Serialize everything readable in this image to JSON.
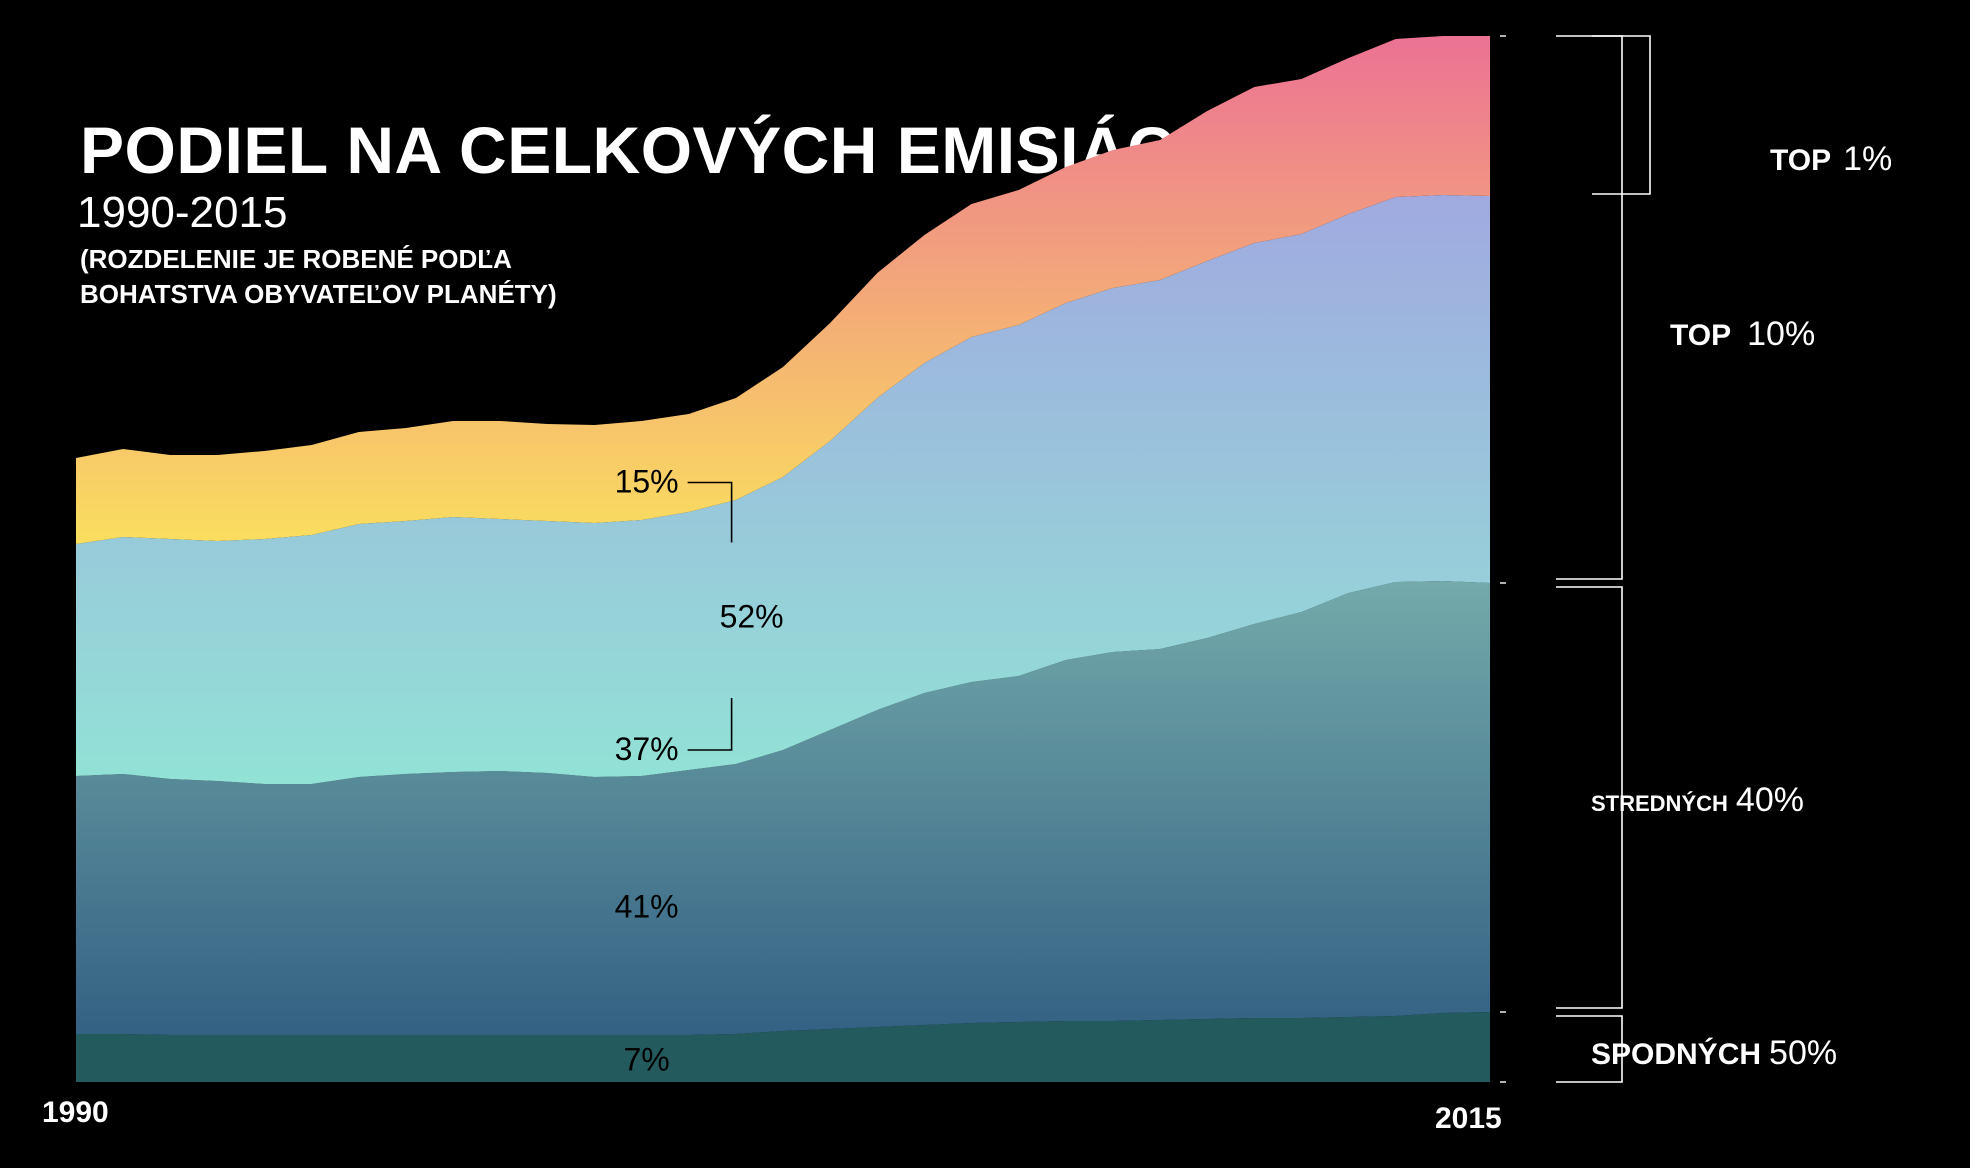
{
  "title": "PODIEL NA CELKOVÝCH EMISIÁCH",
  "subtitle": "1990-2015",
  "note_lines": [
    "(ROZDELENIE JE ROBENÉ PODĽA",
    "BOHATSTVA OBYVATEĽOV PLANÉTY)"
  ],
  "chart_data": {
    "type": "area",
    "stacked": true,
    "x_start_label": "1990",
    "x_end_label": "2015",
    "series": [
      {
        "name": "SPODNÝCH 50%",
        "group_label": "SPODNÝCH",
        "group_pct": "50%",
        "share_label": "7%",
        "colors": [
          "#235a5e",
          "#235a5e"
        ],
        "values": [
          48,
          48,
          47,
          47,
          47,
          47,
          47,
          47,
          47,
          47,
          47,
          47,
          47,
          47,
          48,
          51,
          53,
          55,
          57,
          59,
          60,
          61,
          61,
          62,
          63,
          64,
          64,
          65,
          66,
          69,
          70
        ]
      },
      {
        "name": "STREDNÝCH 40%",
        "group_label": "STREDNÝCH",
        "group_pct": "40%",
        "share_label": "41%",
        "colors": [
          "#336183",
          "#74aaaa"
        ],
        "values": [
          258,
          260,
          256,
          254,
          251,
          251,
          258,
          261,
          263,
          264,
          262,
          258,
          259,
          265,
          270,
          281,
          299,
          317,
          332,
          341,
          346,
          361,
          369,
          371,
          381,
          394,
          406,
          424,
          434,
          432,
          429
        ]
      },
      {
        "name": "TOP 10%",
        "group_label": "TOP",
        "group_pct": "10%",
        "share_label": "37%",
        "colors": [
          "#92e2d6",
          "#a0aae0"
        ],
        "values": [
          232,
          237,
          240,
          240,
          245,
          249,
          253,
          253,
          255,
          252,
          252,
          254,
          256,
          258,
          264,
          273,
          289,
          312,
          330,
          345,
          351,
          357,
          364,
          369,
          377,
          381,
          378,
          379,
          385,
          386,
          387
        ]
      },
      {
        "name": "TOP 1%",
        "group_label": "TOP",
        "group_pct": "1%",
        "share_label": "15%",
        "colors": [
          "#fade5e",
          "#ec7294"
        ],
        "values": [
          86,
          88,
          84,
          86,
          88,
          90,
          92,
          93,
          96,
          98,
          97,
          98,
          99,
          98,
          102,
          110,
          118,
          125,
          128,
          133,
          135,
          136,
          138,
          140,
          150,
          156,
          155,
          156,
          158,
          159,
          160
        ]
      }
    ],
    "annotations": [
      {
        "text": "52%",
        "brackets": [
          "TOP 1%",
          "TOP 10%"
        ]
      }
    ],
    "grid": false,
    "legend": "right"
  }
}
